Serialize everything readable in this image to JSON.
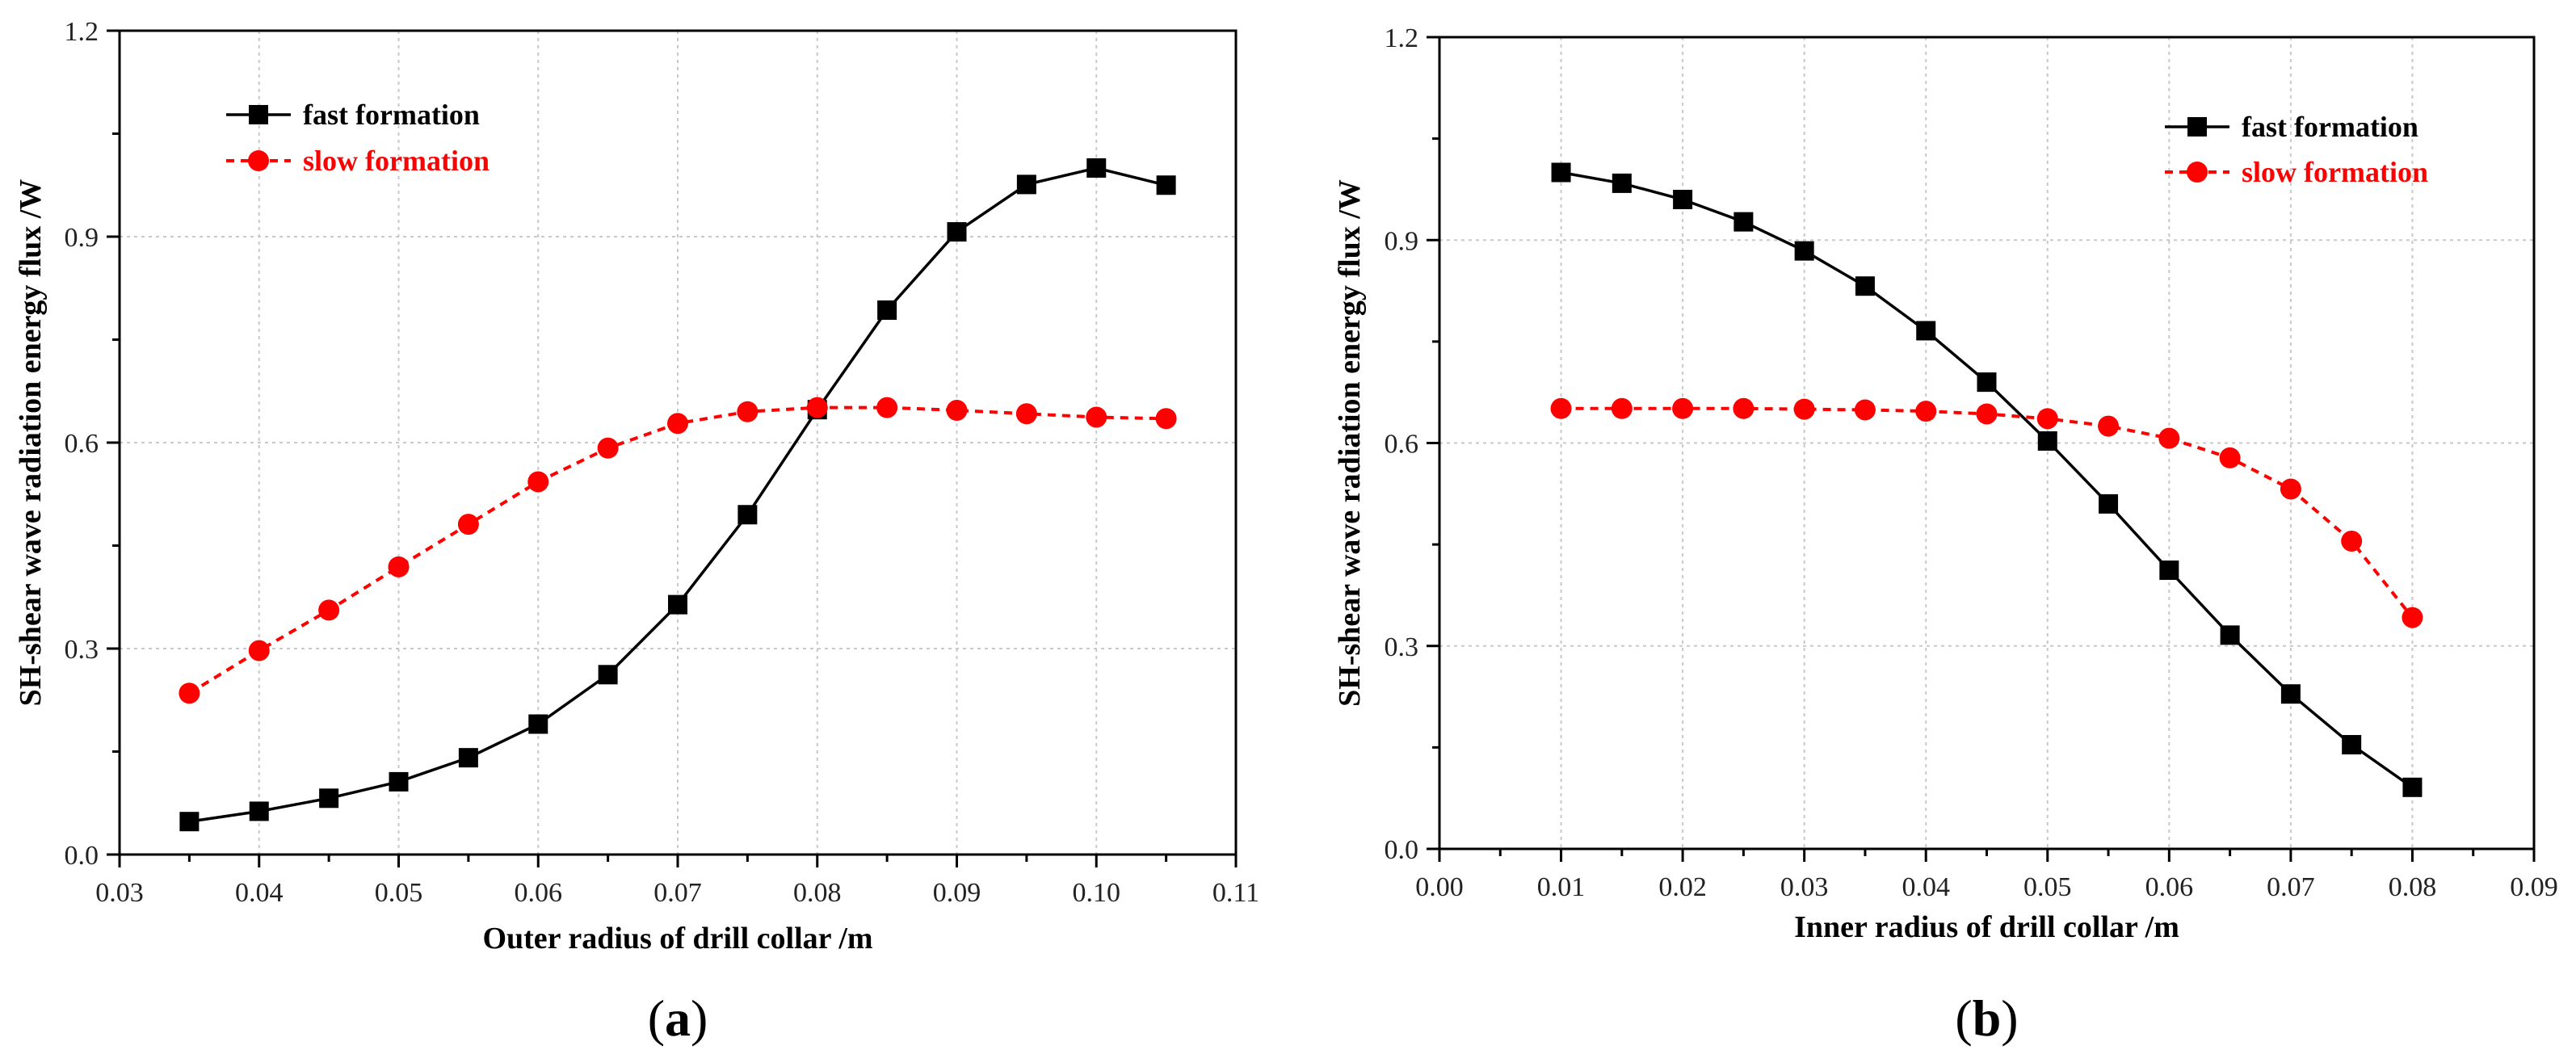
{
  "chart_data": [
    {
      "type": "line",
      "panel_label": {
        "open": "(",
        "letter": "a",
        "close": ")"
      },
      "xlabel": "Outer radius of drill collar /m",
      "ylabel": "SH-shear wave radiation energy flux /W",
      "xlim": [
        0.03,
        0.11
      ],
      "ylim": [
        0.0,
        1.2
      ],
      "xticks": [
        "0.03",
        "0.04",
        "0.05",
        "0.06",
        "0.07",
        "0.08",
        "0.09",
        "0.10",
        "0.11"
      ],
      "yticks": [
        "0.0",
        "0.3",
        "0.6",
        "0.9",
        "1.2"
      ],
      "grid": true,
      "legend_position": "top-left",
      "x": [
        0.035,
        0.04,
        0.045,
        0.05,
        0.055,
        0.06,
        0.065,
        0.07,
        0.075,
        0.08,
        0.085,
        0.09,
        0.095,
        0.1,
        0.105
      ],
      "series": [
        {
          "name": "fast  formation",
          "color": "#000000",
          "marker": "square",
          "line": "solid",
          "values": [
            0.048,
            0.063,
            0.082,
            0.106,
            0.141,
            0.19,
            0.262,
            0.364,
            0.495,
            0.648,
            0.793,
            0.907,
            0.976,
            1.0,
            0.975
          ]
        },
        {
          "name": "slow formation",
          "color": "#ff0000",
          "marker": "circle",
          "line": "dashed",
          "values": [
            0.235,
            0.297,
            0.356,
            0.419,
            0.481,
            0.543,
            0.592,
            0.628,
            0.645,
            0.651,
            0.651,
            0.647,
            0.642,
            0.637,
            0.635
          ]
        }
      ]
    },
    {
      "type": "line",
      "panel_label": {
        "open": "(",
        "letter": "b",
        "close": ")"
      },
      "xlabel": "Inner radius of drill collar /m",
      "ylabel": "SH-shear wave radiation energy flux /W",
      "xlim": [
        0.0,
        0.09
      ],
      "ylim": [
        0.0,
        1.2
      ],
      "xticks": [
        "0.00",
        "0.01",
        "0.02",
        "0.03",
        "0.04",
        "0.05",
        "0.06",
        "0.07",
        "0.08",
        "0.09"
      ],
      "yticks": [
        "0.0",
        "0.3",
        "0.6",
        "0.9",
        "1.2"
      ],
      "grid": true,
      "legend_position": "top-right",
      "x": [
        0.01,
        0.015,
        0.02,
        0.025,
        0.03,
        0.035,
        0.04,
        0.045,
        0.05,
        0.055,
        0.06,
        0.065,
        0.07,
        0.075,
        0.08
      ],
      "series": [
        {
          "name": "fast  formation",
          "color": "#000000",
          "marker": "square",
          "line": "solid",
          "values": [
            1.0,
            0.984,
            0.96,
            0.927,
            0.884,
            0.832,
            0.766,
            0.69,
            0.603,
            0.51,
            0.412,
            0.316,
            0.229,
            0.154,
            0.091
          ]
        },
        {
          "name": "slow formation",
          "color": "#ff0000",
          "marker": "circle",
          "line": "dashed",
          "values": [
            0.651,
            0.651,
            0.651,
            0.651,
            0.65,
            0.649,
            0.647,
            0.643,
            0.636,
            0.625,
            0.607,
            0.578,
            0.532,
            0.455,
            0.342
          ]
        }
      ]
    }
  ]
}
